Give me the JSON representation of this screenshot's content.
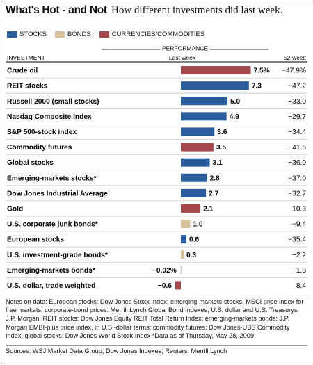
{
  "header": {
    "title": "What's Hot - and Not",
    "subtitle": "How different investments did last week."
  },
  "legend": [
    {
      "label": "STOCKS",
      "color": "#2b5c9c"
    },
    {
      "label": "BONDS",
      "color": "#d8c29d"
    },
    {
      "label": "CURRENCIES/COMMODITIES",
      "color": "#a3494b"
    }
  ],
  "table_headers": {
    "investment": "INVESTMENT",
    "performance": "PERFORMANCE",
    "last_week": "Last week",
    "week52": "52-week"
  },
  "chart_data": {
    "type": "bar",
    "orientation": "horizontal",
    "title": "What's Hot - and Not",
    "subtitle": "How different investments did last week.",
    "categories": [
      "Crude oil",
      "REIT stocks",
      "Russell 2000 (small stocks)",
      "Nasdaq Composite Index",
      "S&P 500-stock index",
      "Commodity futures",
      "Global stocks",
      "Emerging-markets stocks*",
      "Dow Jones Industrial Average",
      "Gold",
      "U.S. corporate junk bonds*",
      "European stocks",
      "U.S. investment-grade bonds*",
      "Emerging-markets bonds*",
      "U.S. dollar, trade weighted"
    ],
    "values": [
      7.5,
      7.3,
      5.0,
      4.9,
      3.6,
      3.5,
      3.1,
      2.8,
      2.7,
      2.1,
      1.0,
      0.6,
      0.3,
      -0.02,
      -0.6
    ],
    "value_labels": [
      "7.5%",
      "7.3",
      "5.0",
      "4.9",
      "3.6",
      "3.5",
      "3.1",
      "2.8",
      "2.7",
      "2.1",
      "1.0",
      "0.6",
      "0.3",
      "−0.02%",
      "−0.6"
    ],
    "groups": [
      "commodity",
      "stock",
      "stock",
      "stock",
      "stock",
      "commodity",
      "stock",
      "stock",
      "stock",
      "commodity",
      "bond",
      "stock",
      "bond",
      "bond",
      "commodity"
    ],
    "week52_labels": [
      "−47.9%",
      "−47.2",
      "−33.0",
      "−29.7",
      "−34.4",
      "−41.6",
      "−36.0",
      "−37.0",
      "−32.7",
      "10.3",
      "−9.4",
      "−35.4",
      "−2.2",
      "−1.8",
      "8.4"
    ],
    "xlim": [
      -0.6,
      7.5
    ],
    "group_colors": {
      "stock": "#2b5c9c",
      "bond": "#d8c29d",
      "commodity": "#a3494b"
    }
  },
  "notes": "Notes on data: European stocks: Dow Jones Stoxx Index; emerging-markets-stocks: MSCI price index for free markets; corporate-bond prices: Merrill Lynch Global Bond Indexes; U.S. dollar and U.S. Treasurys: J.P. Morgan, REIT stocks: Dow Jones Equity REIT Total Return Index; emerging-markets bonds: J.P. Morgan EMBI-plus price index, in U.S.-dollar terms; commodity futures: Dow Jones-UBS Commodity Index; global stocks: Dow Jones World Stock Index  *Data as of Thursday, May 28, 2009",
  "sources": "Sources: WSJ Market Data Group; Dow Jones Indexes; Reuters; Merrill Lynch"
}
